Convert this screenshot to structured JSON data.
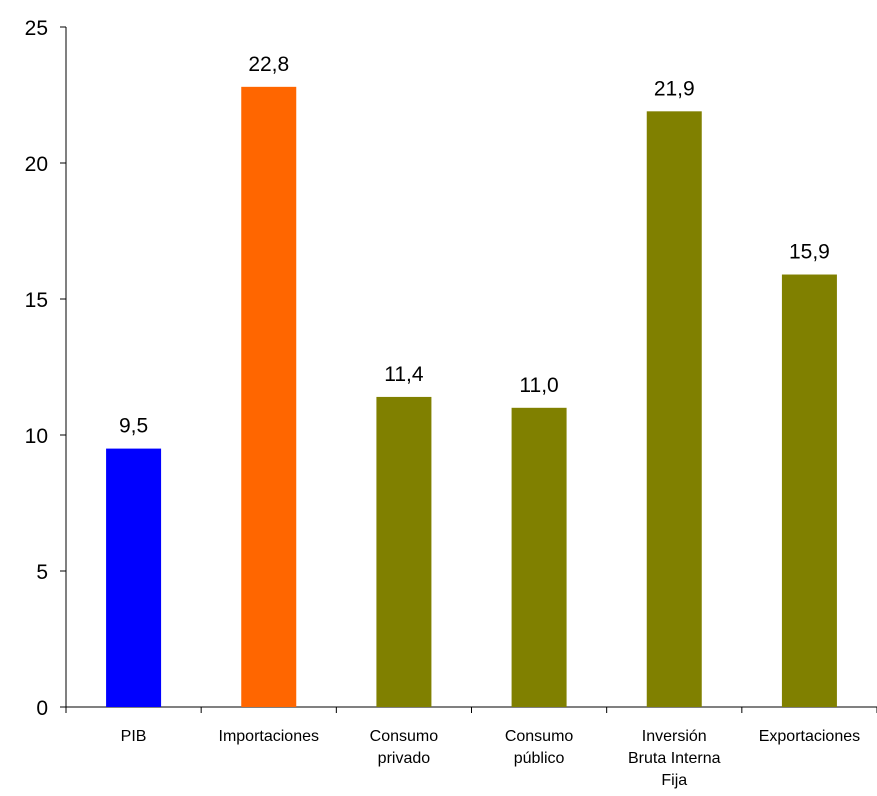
{
  "chart_data": {
    "type": "bar",
    "title": "",
    "xlabel": "",
    "ylabel": "",
    "ylim": [
      0,
      25
    ],
    "yticks": [
      0,
      5,
      10,
      15,
      20,
      25
    ],
    "grid": false,
    "legend": "none",
    "categories": [
      [
        "PIB"
      ],
      [
        "Importaciones"
      ],
      [
        "Consumo",
        "privado"
      ],
      [
        "Consumo",
        "público"
      ],
      [
        "Inversión",
        "Bruta Interna",
        "Fija"
      ],
      [
        "Exportaciones"
      ]
    ],
    "values": [
      9.5,
      22.8,
      11.4,
      11.0,
      21.9,
      15.9
    ],
    "value_labels": [
      "9,5",
      "22,8",
      "11,4",
      "11,0",
      "21,9",
      "15,9"
    ],
    "colors": [
      "#0000FF",
      "#FF6600",
      "#808000",
      "#808000",
      "#808000",
      "#808000"
    ]
  }
}
